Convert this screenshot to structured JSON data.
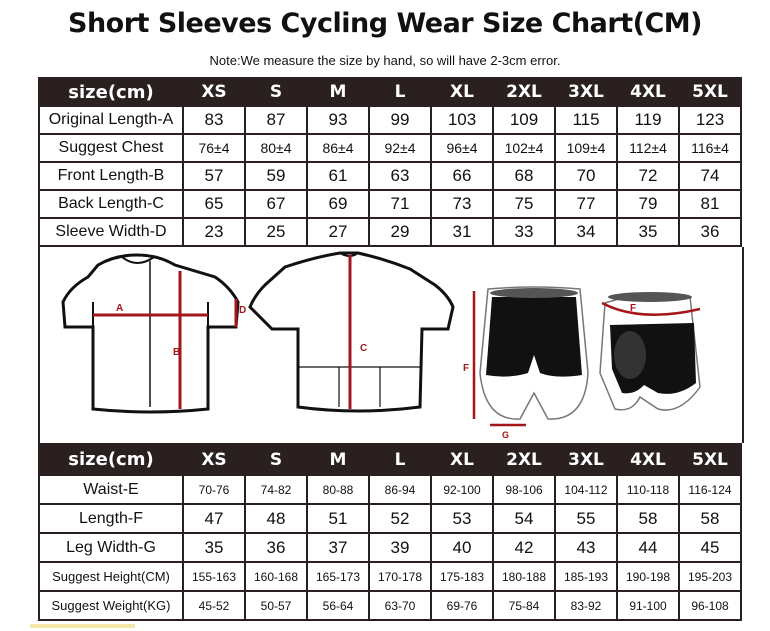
{
  "title": "Short Sleeves Cycling Wear Size Chart(CM)",
  "note": "Note:We measure the size by hand, so will have 2-3cm error.",
  "sizes": [
    "XS",
    "S",
    "M",
    "L",
    "XL",
    "2XL",
    "3XL",
    "4XL",
    "5XL"
  ],
  "jersey_table": {
    "header": "size(cm)",
    "rows": [
      {
        "label": "Original Length-A",
        "values": [
          "83",
          "87",
          "93",
          "99",
          "103",
          "109",
          "115",
          "119",
          "123"
        ]
      },
      {
        "label": "Suggest Chest",
        "values": [
          "76±4",
          "80±4",
          "86±4",
          "92±4",
          "96±4",
          "102±4",
          "109±4",
          "112±4",
          "116±4"
        ]
      },
      {
        "label": "Front Length-B",
        "values": [
          "57",
          "59",
          "61",
          "63",
          "66",
          "68",
          "70",
          "72",
          "74"
        ]
      },
      {
        "label": "Back Length-C",
        "values": [
          "65",
          "67",
          "69",
          "71",
          "73",
          "75",
          "77",
          "79",
          "81"
        ]
      },
      {
        "label": "Sleeve Width-D",
        "values": [
          "23",
          "25",
          "27",
          "29",
          "31",
          "33",
          "34",
          "35",
          "36"
        ]
      }
    ]
  },
  "shorts_table": {
    "header": "size(cm)",
    "rows": [
      {
        "label": "Waist-E",
        "values": [
          "70-76",
          "74-82",
          "80-88",
          "86-94",
          "92-100",
          "98-106",
          "104-112",
          "110-118",
          "116-124"
        ]
      },
      {
        "label": "Length-F",
        "values": [
          "47",
          "48",
          "51",
          "52",
          "53",
          "54",
          "55",
          "58",
          "58"
        ]
      },
      {
        "label": "Leg Width-G",
        "values": [
          "35",
          "36",
          "37",
          "39",
          "40",
          "42",
          "43",
          "44",
          "45"
        ]
      },
      {
        "label": "Suggest Height(CM)",
        "values": [
          "155-163",
          "160-168",
          "165-173",
          "170-178",
          "175-183",
          "180-188",
          "185-193",
          "190-198",
          "195-203"
        ]
      },
      {
        "label": "Suggest Weight(KG)",
        "values": [
          "45-52",
          "50-57",
          "56-64",
          "63-70",
          "69-76",
          "75-84",
          "83-92",
          "91-100",
          "96-108"
        ]
      }
    ]
  },
  "diagram_labels": {
    "a": "A",
    "b": "B",
    "c": "C",
    "d": "D",
    "f": "F",
    "g": "G",
    "f2": "F"
  },
  "colors": {
    "header_bg": "#2a2020",
    "measure_line": "#a3161a",
    "garment_dark": "#111111"
  }
}
